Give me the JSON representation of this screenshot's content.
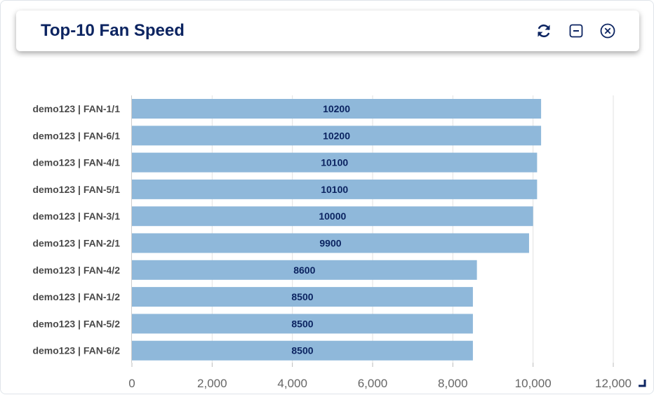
{
  "header": {
    "title": "Top-10 Fan Speed",
    "icons": [
      "refresh-icon",
      "minimize-icon",
      "close-icon"
    ]
  },
  "colors": {
    "title": "#0c2461",
    "bar": "#8fb8da",
    "bar_label": "#0c2461",
    "category_label": "#4a4a4a",
    "tick_label": "#666666",
    "grid": "#e2e2e2"
  },
  "chart_data": {
    "type": "bar",
    "orientation": "horizontal",
    "categories": [
      "demo123 | FAN-1/1",
      "demo123 | FAN-6/1",
      "demo123 | FAN-4/1",
      "demo123 | FAN-5/1",
      "demo123 | FAN-3/1",
      "demo123 | FAN-2/1",
      "demo123 | FAN-4/2",
      "demo123 | FAN-1/2",
      "demo123 | FAN-5/2",
      "demo123 | FAN-6/2"
    ],
    "values": [
      10200,
      10200,
      10100,
      10100,
      10000,
      9900,
      8600,
      8500,
      8500,
      8500
    ],
    "value_labels": [
      "10200",
      "10200",
      "10100",
      "10100",
      "10000",
      "9900",
      "8600",
      "8500",
      "8500",
      "8500"
    ],
    "xlim": [
      0,
      12000
    ],
    "xticks": [
      0,
      2000,
      4000,
      6000,
      8000,
      10000,
      12000
    ],
    "xtick_labels": [
      "0",
      "2,000",
      "4,000",
      "6,000",
      "8,000",
      "10,000",
      "12,000"
    ],
    "grid": true,
    "legend": false
  }
}
